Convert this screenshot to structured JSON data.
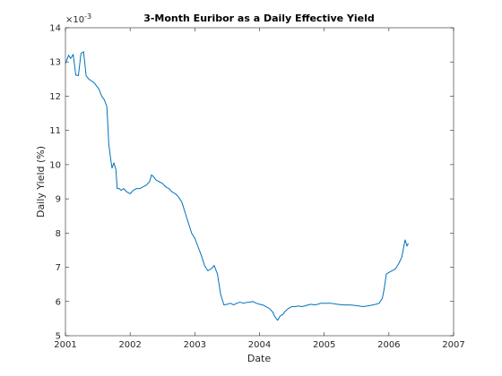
{
  "chart_data": {
    "type": "line",
    "title": "3-Month Euribor as a Daily Effective Yield",
    "xlabel": "Date",
    "ylabel": "Daily Yield (%)",
    "exponent_label": "×10",
    "exponent_power": "-3",
    "xlim": [
      2001,
      2007
    ],
    "ylim": [
      5,
      14
    ],
    "xticks": [
      "2001",
      "2002",
      "2003",
      "2004",
      "2005",
      "2006",
      "2007"
    ],
    "yticks": [
      "5",
      "6",
      "7",
      "8",
      "9",
      "10",
      "11",
      "12",
      "13",
      "14"
    ],
    "grid": false,
    "line_color": "#0072bd",
    "series": [
      {
        "x": [
          2001.0,
          2001.05,
          2001.08,
          2001.12,
          2001.16,
          2001.2,
          2001.24,
          2001.28,
          2001.32,
          2001.36,
          2001.4,
          2001.44,
          2001.48,
          2001.52,
          2001.56,
          2001.6,
          2001.64,
          2001.66,
          2001.67,
          2001.7,
          2001.72,
          2001.75,
          2001.78,
          2001.8,
          2001.83,
          2001.86,
          2001.9,
          2001.95,
          2002.0,
          2002.05,
          2002.1,
          2002.15,
          2002.2,
          2002.25,
          2002.3,
          2002.33,
          2002.36,
          2002.4,
          2002.45,
          2002.5,
          2002.55,
          2002.6,
          2002.65,
          2002.7,
          2002.75,
          2002.8,
          2002.85,
          2002.9,
          2002.95,
          2003.0,
          2003.05,
          2003.1,
          2003.15,
          2003.2,
          2003.25,
          2003.3,
          2003.35,
          2003.4,
          2003.45,
          2003.5,
          2003.55,
          2003.6,
          2003.65,
          2003.7,
          2003.75,
          2003.8,
          2003.85,
          2003.9,
          2003.95,
          2004.0,
          2004.05,
          2004.1,
          2004.15,
          2004.2,
          2004.24,
          2004.28,
          2004.32,
          2004.36,
          2004.4,
          2004.45,
          2004.5,
          2004.55,
          2004.6,
          2004.65,
          2004.7,
          2004.75,
          2004.8,
          2004.85,
          2004.9,
          2004.95,
          2005.0,
          2005.1,
          2005.2,
          2005.3,
          2005.4,
          2005.5,
          2005.6,
          2005.7,
          2005.8,
          2005.85,
          2005.9,
          2005.93,
          2005.96,
          2006.0,
          2006.05,
          2006.1,
          2006.15,
          2006.2,
          2006.23,
          2006.25,
          2006.28,
          2006.3
        ],
        "y": [
          12.95,
          13.2,
          13.1,
          13.22,
          12.62,
          12.6,
          13.25,
          13.3,
          12.6,
          12.5,
          12.45,
          12.4,
          12.3,
          12.2,
          12.0,
          11.9,
          11.7,
          11.0,
          10.6,
          10.15,
          9.9,
          10.05,
          9.85,
          9.3,
          9.3,
          9.25,
          9.3,
          9.2,
          9.15,
          9.25,
          9.3,
          9.3,
          9.35,
          9.4,
          9.5,
          9.7,
          9.65,
          9.55,
          9.5,
          9.45,
          9.35,
          9.3,
          9.2,
          9.15,
          9.05,
          8.9,
          8.6,
          8.3,
          8.0,
          7.85,
          7.6,
          7.35,
          7.05,
          6.9,
          6.95,
          7.05,
          6.8,
          6.2,
          5.9,
          5.92,
          5.95,
          5.9,
          5.95,
          5.98,
          5.95,
          5.97,
          5.98,
          6.0,
          5.95,
          5.92,
          5.9,
          5.85,
          5.8,
          5.7,
          5.55,
          5.45,
          5.58,
          5.62,
          5.72,
          5.8,
          5.85,
          5.85,
          5.87,
          5.85,
          5.87,
          5.9,
          5.92,
          5.9,
          5.92,
          5.95,
          5.95,
          5.95,
          5.92,
          5.9,
          5.9,
          5.88,
          5.85,
          5.88,
          5.92,
          5.95,
          6.1,
          6.4,
          6.8,
          6.85,
          6.9,
          6.95,
          7.1,
          7.3,
          7.6,
          7.8,
          7.62,
          7.7
        ]
      }
    ]
  }
}
